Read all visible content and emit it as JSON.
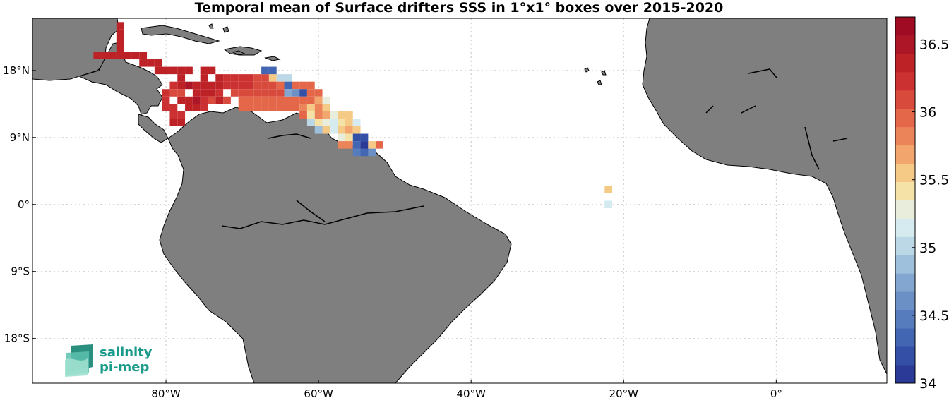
{
  "title": "Temporal mean of Surface drifters SSS in 1°x1° boxes over 2015-2020",
  "x_ticks": [
    {
      "lon": -80,
      "label": "80°W"
    },
    {
      "lon": -60,
      "label": "60°W"
    },
    {
      "lon": -40,
      "label": "40°W"
    },
    {
      "lon": -20,
      "label": "20°W"
    },
    {
      "lon": 0,
      "label": "0°"
    }
  ],
  "y_ticks": [
    {
      "lat": 18,
      "label": "18°N"
    },
    {
      "lat": 9,
      "label": "9°N"
    },
    {
      "lat": 0,
      "label": "0°"
    },
    {
      "lat": -9,
      "label": "9°S"
    },
    {
      "lat": -18,
      "label": "18°S"
    }
  ],
  "colorbar": {
    "min": 34.0,
    "max": 36.7,
    "ticks": [
      {
        "value": 34,
        "label": "34"
      },
      {
        "value": 34.5,
        "label": "34.5"
      },
      {
        "value": 35,
        "label": "35"
      },
      {
        "value": 35.5,
        "label": "35.5"
      },
      {
        "value": 36,
        "label": "36"
      },
      {
        "value": 36.5,
        "label": "36.5"
      }
    ],
    "colors": [
      "#2a3a96",
      "#3350a6",
      "#4366b2",
      "#577cbd",
      "#6b90c6",
      "#83a6d0",
      "#9fc0dc",
      "#bcd8e6",
      "#d6ebf0",
      "#e9eddc",
      "#f5e2a6",
      "#f5c986",
      "#f2a56c",
      "#ec845a",
      "#e4674a",
      "#d84a3c",
      "#cc3131",
      "#bd2227",
      "#ad1627",
      "#a00b24"
    ]
  },
  "logo": {
    "line1": "salinity",
    "line2": "pi-mep"
  },
  "map_data": {
    "extent": {
      "lon_min": -97.5,
      "lon_max": 14.5,
      "lat_min": -24,
      "lat_max": 25
    },
    "grid": "dotted",
    "cells": [
      [
        -86,
        24,
        36.4
      ],
      [
        -86,
        23,
        36.4
      ],
      [
        -86,
        22,
        36.4
      ],
      [
        -86,
        21,
        36.4
      ],
      [
        -86,
        20,
        36.4
      ],
      [
        -87,
        20,
        36.4
      ],
      [
        -88,
        20,
        36.4
      ],
      [
        -89,
        20,
        36.4
      ],
      [
        -85,
        20,
        36.3
      ],
      [
        -84,
        20,
        36.3
      ],
      [
        -83,
        20,
        36.3
      ],
      [
        -83,
        19,
        36.3
      ],
      [
        -82,
        19,
        36.3
      ],
      [
        -81,
        19,
        36.3
      ],
      [
        -81,
        18,
        36.3
      ],
      [
        -80,
        18,
        36.3
      ],
      [
        -79,
        18,
        36.3
      ],
      [
        -78,
        18,
        36.3
      ],
      [
        -77,
        18,
        36.3
      ],
      [
        -78,
        17,
        36.3
      ],
      [
        -75,
        18,
        36.3
      ],
      [
        -74,
        18,
        36.3
      ],
      [
        -75,
        17,
        36.3
      ],
      [
        -73,
        17,
        36.3
      ],
      [
        -73,
        16,
        36.3
      ],
      [
        -72,
        17,
        36.2
      ],
      [
        -71,
        17,
        36.2
      ],
      [
        -70,
        17,
        36.2
      ],
      [
        -69,
        17,
        36.2
      ],
      [
        -68,
        17,
        36.1
      ],
      [
        -67,
        17,
        36.1
      ],
      [
        -66,
        17,
        35.6
      ],
      [
        -65,
        17,
        35.0
      ],
      [
        -67,
        18,
        34.3
      ],
      [
        -66,
        18,
        34.3
      ],
      [
        -64,
        17,
        35.0
      ],
      [
        -79,
        16,
        36.2
      ],
      [
        -78,
        16,
        36.4
      ],
      [
        -77,
        16,
        36.5
      ],
      [
        -76,
        16,
        36.3
      ],
      [
        -75,
        16,
        36.3
      ],
      [
        -74,
        16,
        36.4
      ],
      [
        -72,
        16,
        36.2
      ],
      [
        -71,
        16,
        36.2
      ],
      [
        -70,
        16,
        36.2
      ],
      [
        -69,
        16,
        36.2
      ],
      [
        -68,
        16,
        36.1
      ],
      [
        -67,
        16,
        36.1
      ],
      [
        -66,
        16,
        36.1
      ],
      [
        -65,
        16,
        36.0
      ],
      [
        -64,
        16,
        34.4
      ],
      [
        -63,
        16,
        36.0
      ],
      [
        -62,
        16,
        35.9
      ],
      [
        -61,
        16,
        35.9
      ],
      [
        -80,
        15,
        36.2
      ],
      [
        -79,
        15,
        36.1
      ],
      [
        -78,
        15,
        36.1
      ],
      [
        -76,
        15,
        36.3
      ],
      [
        -75,
        15,
        36.3
      ],
      [
        -74,
        15,
        36.3
      ],
      [
        -73,
        15,
        36.2
      ],
      [
        -71,
        15,
        36.1
      ],
      [
        -70,
        15,
        36.1
      ],
      [
        -69,
        15,
        36.1
      ],
      [
        -68,
        15,
        36.1
      ],
      [
        -67,
        15,
        36.1
      ],
      [
        -66,
        15,
        36.1
      ],
      [
        -65,
        15,
        36.1
      ],
      [
        -64,
        15,
        34.8
      ],
      [
        -63,
        15,
        34.6
      ],
      [
        -62,
        15,
        34.2
      ],
      [
        -61,
        15,
        35.9
      ],
      [
        -60,
        15,
        36.0
      ],
      [
        -80,
        14,
        36.2
      ],
      [
        -78,
        14,
        36.3
      ],
      [
        -77,
        14,
        36.3
      ],
      [
        -76,
        14,
        36.5
      ],
      [
        -75,
        14,
        36.2
      ],
      [
        -74,
        14,
        36.1
      ],
      [
        -73,
        14,
        36.3
      ],
      [
        -72,
        14,
        36.1
      ],
      [
        -70,
        14,
        36.0
      ],
      [
        -69,
        14,
        36.0
      ],
      [
        -68,
        14,
        36.0
      ],
      [
        -67,
        14,
        36.0
      ],
      [
        -66,
        14,
        36.0
      ],
      [
        -65,
        14,
        36.0
      ],
      [
        -64,
        14,
        36.0
      ],
      [
        -63,
        14,
        36.0
      ],
      [
        -62,
        14,
        35.9
      ],
      [
        -61,
        14,
        36.0
      ],
      [
        -60,
        14,
        35.7
      ],
      [
        -59,
        14,
        35.3
      ],
      [
        -80,
        13,
        36.2
      ],
      [
        -79,
        13,
        36.2
      ],
      [
        -77,
        13,
        36.3
      ],
      [
        -76,
        13,
        36.3
      ],
      [
        -75,
        13,
        36.2
      ],
      [
        -70,
        13,
        35.9
      ],
      [
        -69,
        13,
        35.9
      ],
      [
        -68,
        13,
        35.9
      ],
      [
        -67,
        13,
        36.0
      ],
      [
        -66,
        13,
        35.9
      ],
      [
        -65,
        13,
        35.9
      ],
      [
        -64,
        13,
        35.9
      ],
      [
        -63,
        13,
        35.9
      ],
      [
        -62,
        13,
        35.8
      ],
      [
        -61,
        13,
        35.6
      ],
      [
        -60,
        13,
        35.8
      ],
      [
        -59,
        13,
        35.5
      ],
      [
        -79,
        12,
        36.2
      ],
      [
        -78,
        12,
        36.2
      ],
      [
        -62,
        12,
        35.9
      ],
      [
        -61,
        12,
        35.4
      ],
      [
        -60,
        12,
        35.8
      ],
      [
        -59,
        12,
        35.7
      ],
      [
        -58,
        12,
        35.3
      ],
      [
        -57,
        12,
        35.5
      ],
      [
        -56,
        12,
        35.6
      ],
      [
        -79,
        11,
        36.3
      ],
      [
        -78,
        11,
        36.3
      ],
      [
        -61,
        11,
        35.0
      ],
      [
        -60,
        11,
        35.4
      ],
      [
        -59,
        11,
        35.3
      ],
      [
        -58,
        11,
        35.1
      ],
      [
        -57,
        11,
        35.4
      ],
      [
        -56,
        11,
        35.5
      ],
      [
        -55,
        11,
        35.1
      ],
      [
        -60,
        10,
        34.9
      ],
      [
        -59,
        10,
        35.5
      ],
      [
        -58,
        10,
        35.2
      ],
      [
        -57,
        10,
        35.5
      ],
      [
        -56,
        10,
        35.7
      ],
      [
        -55,
        10,
        35.5
      ],
      [
        -57,
        9,
        35.3
      ],
      [
        -56,
        9,
        35.4
      ],
      [
        -55,
        9,
        34.2
      ],
      [
        -54,
        9,
        34.2
      ],
      [
        -57,
        8,
        35.8
      ],
      [
        -56,
        8,
        35.8
      ],
      [
        -55,
        8,
        34.3
      ],
      [
        -54,
        8,
        34.1
      ],
      [
        -53,
        8,
        35.6
      ],
      [
        -52,
        8,
        36.0
      ],
      [
        -55,
        7,
        34.5
      ],
      [
        -54,
        7,
        34.4
      ],
      [
        -53,
        7,
        34.6
      ],
      [
        -22,
        2,
        35.6
      ],
      [
        -22,
        0,
        35.2
      ]
    ]
  }
}
